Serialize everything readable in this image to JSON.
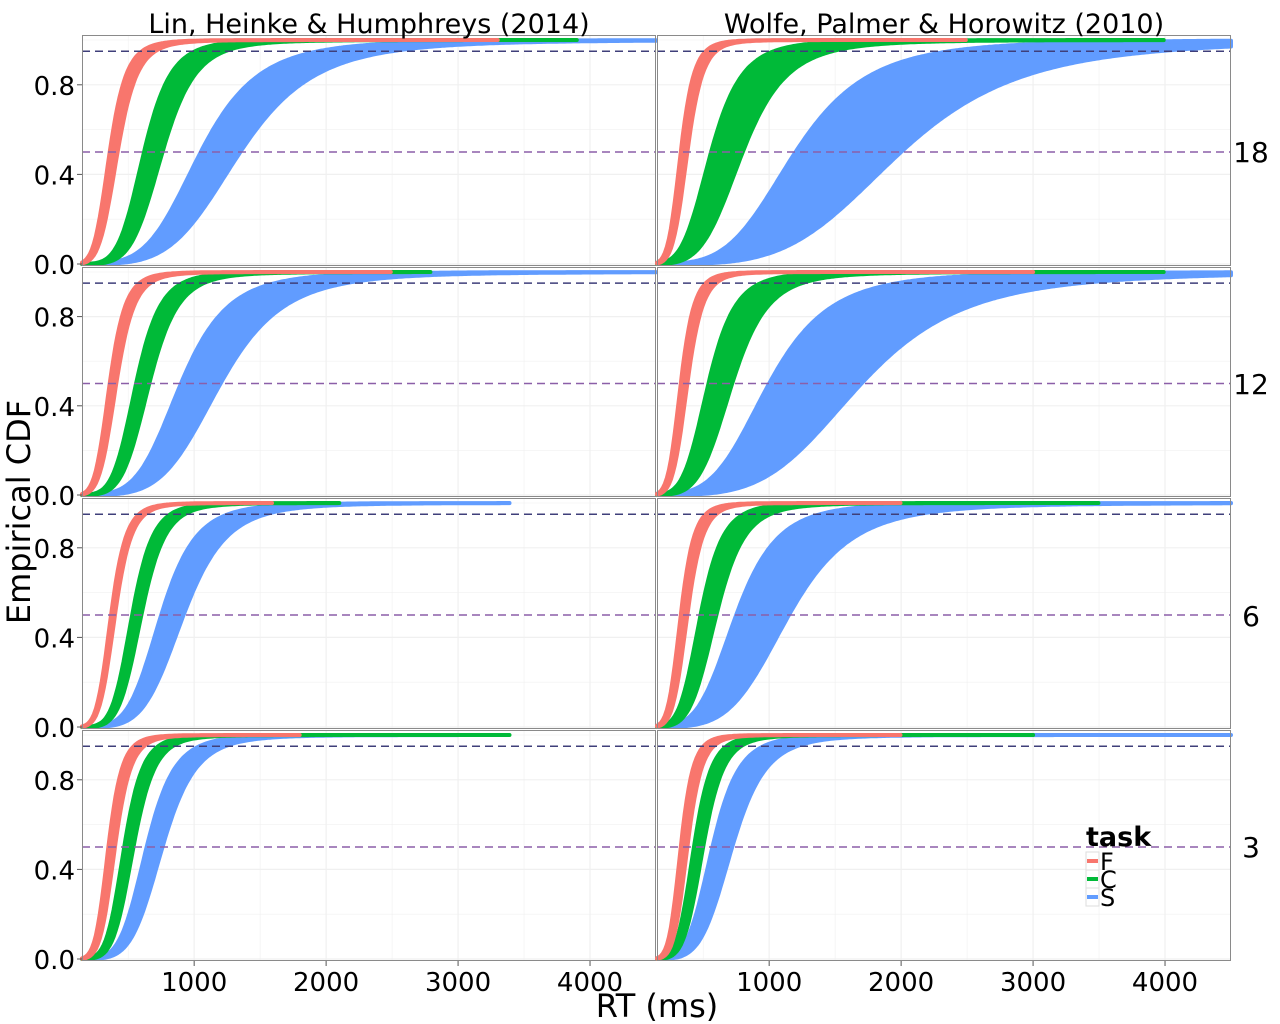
{
  "chart_data": {
    "type": "line",
    "xlabel": "RT (ms)",
    "ylabel": "Empirical CDF",
    "xlim": [
      150,
      4500
    ],
    "ylim": [
      0,
      1
    ],
    "x_ticks": [
      "1000",
      "2000",
      "3000",
      "4000"
    ],
    "y_ticks": [
      "0.0",
      "0.4",
      "0.8"
    ],
    "columns": [
      "Lin, Heinke & Humphreys (2014)",
      "Wolfe, Palmer & Horowitz (2010)"
    ],
    "rows": [
      "18",
      "12",
      "6",
      "3"
    ],
    "reference_lines": [
      0.5,
      0.95
    ],
    "grid": true,
    "legend": {
      "title": "task",
      "position": "bottom-right",
      "entries": [
        "F",
        "C",
        "S"
      ]
    },
    "colors": {
      "F": "#F8766D",
      "C": "#00BA38",
      "S": "#619CFF",
      "line_050": "#8B5FA8",
      "line_095": "#3F3F7A"
    },
    "series": [
      {
        "panel": "Lin-18",
        "task": "F",
        "median": [
          360,
          420
        ],
        "spread": 0.32,
        "max_rt": 3300
      },
      {
        "panel": "Lin-18",
        "task": "C",
        "median": [
          620,
          760
        ],
        "spread": 0.3,
        "max_rt": 3900
      },
      {
        "panel": "Lin-18",
        "task": "S",
        "median": [
          1050,
          1350
        ],
        "spread": 0.38,
        "max_rt": 4500
      },
      {
        "panel": "Wolfe-18",
        "task": "F",
        "median": [
          330,
          380
        ],
        "spread": 0.28,
        "max_rt": 2500
      },
      {
        "panel": "Wolfe-18",
        "task": "C",
        "median": [
          560,
          800
        ],
        "spread": 0.38,
        "max_rt": 4000
      },
      {
        "panel": "Wolfe-18",
        "task": "S",
        "median": [
          1200,
          2000
        ],
        "spread": 0.42,
        "max_rt": 4500
      },
      {
        "panel": "Lin-12",
        "task": "F",
        "median": [
          360,
          410
        ],
        "spread": 0.3,
        "max_rt": 2500
      },
      {
        "panel": "Lin-12",
        "task": "C",
        "median": [
          560,
          660
        ],
        "spread": 0.3,
        "max_rt": 2800
      },
      {
        "panel": "Lin-12",
        "task": "S",
        "median": [
          900,
          1200
        ],
        "spread": 0.36,
        "max_rt": 4500
      },
      {
        "panel": "Wolfe-12",
        "task": "F",
        "median": [
          330,
          380
        ],
        "spread": 0.28,
        "max_rt": 3000
      },
      {
        "panel": "Wolfe-12",
        "task": "C",
        "median": [
          540,
          720
        ],
        "spread": 0.34,
        "max_rt": 4000
      },
      {
        "panel": "Wolfe-12",
        "task": "S",
        "median": [
          1000,
          1700
        ],
        "spread": 0.42,
        "max_rt": 4500
      },
      {
        "panel": "Lin-6",
        "task": "F",
        "median": [
          370,
          400
        ],
        "spread": 0.28,
        "max_rt": 1600
      },
      {
        "panel": "Lin-6",
        "task": "C",
        "median": [
          530,
          600
        ],
        "spread": 0.27,
        "max_rt": 2100
      },
      {
        "panel": "Lin-6",
        "task": "S",
        "median": [
          750,
          920
        ],
        "spread": 0.32,
        "max_rt": 3400
      },
      {
        "panel": "Wolfe-6",
        "task": "F",
        "median": [
          330,
          380
        ],
        "spread": 0.28,
        "max_rt": 2000
      },
      {
        "panel": "Wolfe-6",
        "task": "C",
        "median": [
          480,
          600
        ],
        "spread": 0.32,
        "max_rt": 3500
      },
      {
        "panel": "Wolfe-6",
        "task": "S",
        "median": [
          750,
          1150
        ],
        "spread": 0.38,
        "max_rt": 4500
      },
      {
        "panel": "Lin-3",
        "task": "F",
        "median": [
          350,
          400
        ],
        "spread": 0.27,
        "max_rt": 1800
      },
      {
        "panel": "Lin-3",
        "task": "C",
        "median": [
          470,
          540
        ],
        "spread": 0.27,
        "max_rt": 3400
      },
      {
        "panel": "Lin-3",
        "task": "S",
        "median": [
          640,
          760
        ],
        "spread": 0.3,
        "max_rt": 3000
      },
      {
        "panel": "Wolfe-3",
        "task": "F",
        "median": [
          330,
          380
        ],
        "spread": 0.26,
        "max_rt": 2000
      },
      {
        "panel": "Wolfe-3",
        "task": "C",
        "median": [
          430,
          500
        ],
        "spread": 0.28,
        "max_rt": 3000
      },
      {
        "panel": "Wolfe-3",
        "task": "S",
        "median": [
          570,
          720
        ],
        "spread": 0.32,
        "max_rt": 4500
      }
    ]
  }
}
